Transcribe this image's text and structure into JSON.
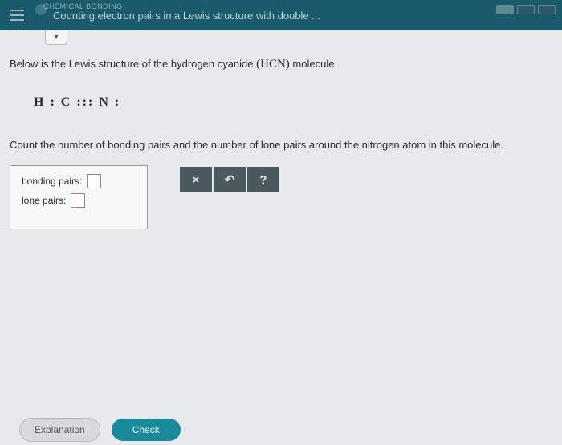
{
  "header": {
    "category": "CHEMICAL BONDING",
    "title": "Counting electron pairs in a Lewis structure with double ..."
  },
  "intro_prefix": "Below is the Lewis structure of the hydrogen cyanide ",
  "intro_formula": "(HCN)",
  "intro_suffix": " molecule.",
  "lewis_structure": "H : C ::: N :",
  "question": "Count the number of bonding pairs and the number of lone pairs around the nitrogen atom in this molecule.",
  "labels": {
    "bonding": "bonding pairs:",
    "lone": "lone pairs:"
  },
  "inputs": {
    "bonding_value": "",
    "lone_value": ""
  },
  "toolbar": {
    "clear": "×",
    "undo": "↶",
    "help": "?"
  },
  "footer": {
    "explanation": "Explanation",
    "check": "Check"
  }
}
